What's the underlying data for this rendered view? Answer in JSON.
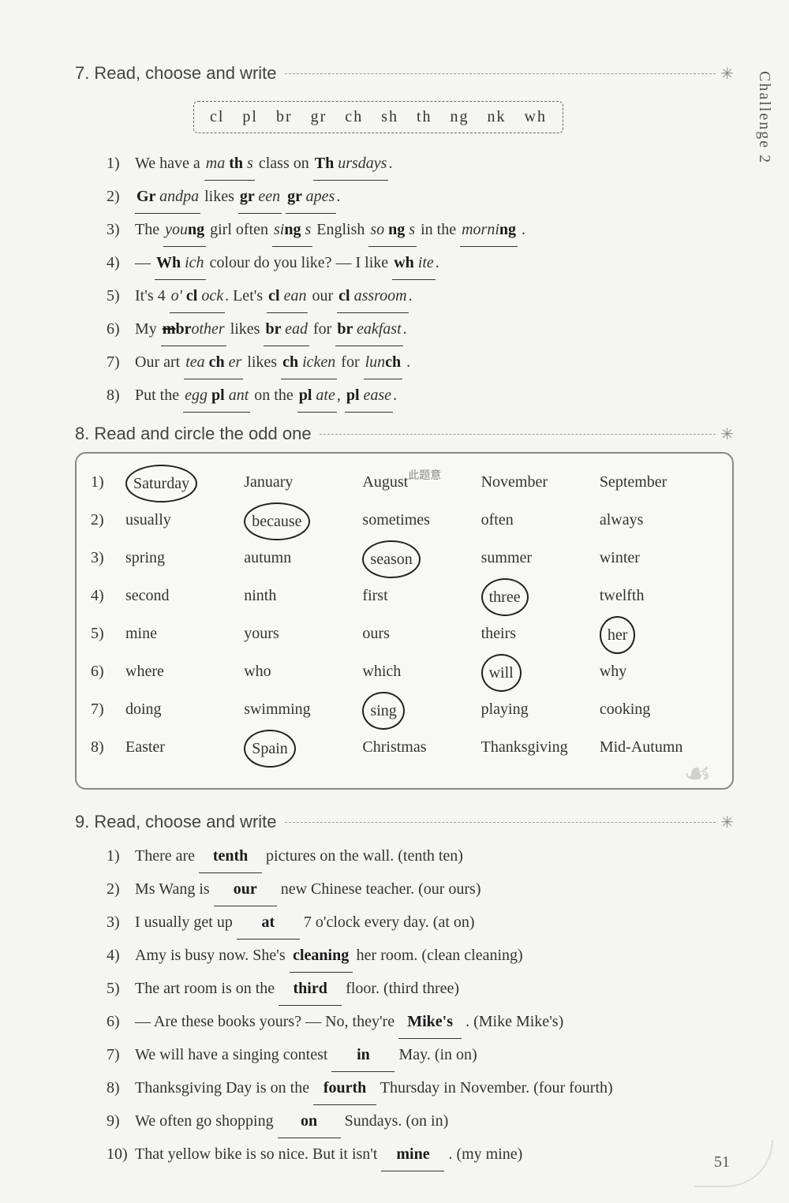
{
  "sideLabel": "Challenge 2",
  "section7": {
    "num": "7.",
    "title": "Read, choose and write",
    "wordbank": "cl   pl   br   gr   ch   sh   th   ng   nk   wh",
    "items": [
      {
        "n": "1)",
        "parts": [
          "We have a ",
          {
            "u": "ma",
            "h": " th ",
            "tail": " s"
          },
          " class on ",
          {
            "u": "",
            "h": " Th ",
            "tail": "ursdays"
          },
          "."
        ]
      },
      {
        "n": "2)",
        "parts": [
          {
            "u": "",
            "h": "Gr ",
            "tail": "andpa"
          },
          " likes ",
          {
            "u": "",
            "h": "gr ",
            "tail": "een"
          },
          " ",
          {
            "u": "",
            "h": "gr ",
            "tail": "apes"
          },
          "."
        ]
      },
      {
        "n": "3)",
        "parts": [
          "The ",
          {
            "u": "you",
            "h": "ng",
            "tail": ""
          },
          "     girl often ",
          {
            "u": "si",
            "h": "ng",
            "tail": "    s"
          },
          " English ",
          {
            "u": "so",
            "h": " ng",
            "tail": "    s"
          },
          " in the ",
          {
            "u": "morni",
            "h": "ng",
            "tail": ""
          },
          "    ."
        ]
      },
      {
        "n": "4)",
        "parts": [
          "— ",
          {
            "u": "",
            "h": "Wh ",
            "tail": "ich"
          },
          " colour do you like?    — I like ",
          {
            "u": "",
            "h": "wh ",
            "tail": "ite"
          },
          "."
        ]
      },
      {
        "n": "5)",
        "parts": [
          "It's 4 ",
          {
            "u": "o' ",
            "h": " cl ",
            "tail": "ock"
          },
          ". Let's ",
          {
            "u": "",
            "h": " cl ",
            "tail": "ean"
          },
          " our ",
          {
            "u": "",
            "h": " cl ",
            "tail": "assroom"
          },
          "."
        ]
      },
      {
        "n": "6)",
        "parts": [
          "My ",
          {
            "u": "",
            "h": "br",
            "tail": "other",
            "strike": "m"
          },
          " likes ",
          {
            "u": "",
            "h": " br ",
            "tail": "ead"
          },
          " for ",
          {
            "u": "",
            "h": " br ",
            "tail": "eakfast"
          },
          "."
        ]
      },
      {
        "n": "7)",
        "parts": [
          "Our art ",
          {
            "u": "tea ",
            "h": " ch ",
            "tail": "er"
          },
          " likes ",
          {
            "u": "",
            "h": " ch ",
            "tail": "icken"
          },
          " for ",
          {
            "u": "lun",
            "h": "ch",
            "tail": ""
          },
          "    ."
        ]
      },
      {
        "n": "8)",
        "parts": [
          "Put the ",
          {
            "u": "egg ",
            "h": " pl ",
            "tail": "ant"
          },
          " on the ",
          {
            "u": "",
            "h": " pl ",
            "tail": "ate"
          },
          ", ",
          {
            "u": "",
            "h": " pl ",
            "tail": "ease"
          },
          "."
        ]
      }
    ]
  },
  "section8": {
    "num": "8.",
    "title": "Read and circle the odd one",
    "rows": [
      {
        "n": "1)",
        "cells": [
          "Saturday",
          "January",
          "August",
          "November",
          "September"
        ],
        "circled": 0,
        "anno": "此题意"
      },
      {
        "n": "2)",
        "cells": [
          "usually",
          "because",
          "sometimes",
          "often",
          "always"
        ],
        "circled": 1
      },
      {
        "n": "3)",
        "cells": [
          "spring",
          "autumn",
          "season",
          "summer",
          "winter"
        ],
        "circled": 2
      },
      {
        "n": "4)",
        "cells": [
          "second",
          "ninth",
          "first",
          "three",
          "twelfth"
        ],
        "circled": 3
      },
      {
        "n": "5)",
        "cells": [
          "mine",
          "yours",
          "ours",
          "theirs",
          "her"
        ],
        "circled": 4
      },
      {
        "n": "6)",
        "cells": [
          "where",
          "who",
          "which",
          "will",
          "why"
        ],
        "circled": 3
      },
      {
        "n": "7)",
        "cells": [
          "doing",
          "swimming",
          "sing",
          "playing",
          "cooking"
        ],
        "circled": 2
      },
      {
        "n": "8)",
        "cells": [
          "Easter",
          "Spain",
          "Christmas",
          "Thanksgiving",
          "Mid-Autumn"
        ],
        "circled": 1
      }
    ]
  },
  "section9": {
    "num": "9.",
    "title": "Read, choose and write",
    "items": [
      {
        "n": "1)",
        "pre": "There are ",
        "ans": "tenth",
        "post": " pictures on the wall. (tenth   ten)"
      },
      {
        "n": "2)",
        "pre": "Ms Wang is ",
        "ans": "our",
        "post": " new Chinese teacher. (our   ours)"
      },
      {
        "n": "3)",
        "pre": "I usually get up ",
        "ans": "at",
        "post": " 7 o'clock every day. (at   on)"
      },
      {
        "n": "4)",
        "pre": "Amy is busy now. She's ",
        "ans": "cleaning",
        "post": " her room. (clean   cleaning)"
      },
      {
        "n": "5)",
        "pre": "The art room is on the ",
        "ans": "third",
        "post": " floor. (third   three)"
      },
      {
        "n": "6)",
        "pre": "— Are these books yours?    — No, they're ",
        "ans": "Mike's",
        "post": " . (Mike   Mike's)"
      },
      {
        "n": "7)",
        "pre": "We will have a singing contest ",
        "ans": "in",
        "post": " May. (in   on)"
      },
      {
        "n": "8)",
        "pre": "Thanksgiving Day is on the ",
        "ans": "fourth",
        "post": " Thursday in November. (four   fourth)"
      },
      {
        "n": "9)",
        "pre": "We often go shopping ",
        "ans": "on",
        "post": " Sundays. (on   in)"
      },
      {
        "n": "10)",
        "pre": "That yellow bike is so nice. But it isn't ",
        "ans": "mine",
        "post": " . (my   mine)"
      }
    ]
  },
  "pageNumber": "51"
}
